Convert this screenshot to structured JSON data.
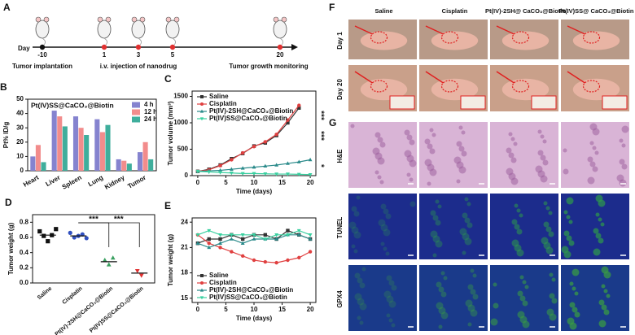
{
  "chart_data": [
    {
      "type": "bar",
      "panel": "B",
      "title": "Pt(IV)SS@CaCO₃@Biotin",
      "y_label": "Pt% ID/g",
      "categories": [
        "Heart",
        "Liver",
        "Spleen",
        "Lung",
        "Kidney",
        "Tumor"
      ],
      "series": [
        {
          "name": "4 h",
          "color": "#8583cf",
          "values": [
            10,
            42,
            38,
            36,
            8,
            13
          ]
        },
        {
          "name": "12 h",
          "color": "#f28c8c",
          "values": [
            18,
            38,
            30,
            27,
            7,
            20
          ]
        },
        {
          "name": "24 h",
          "color": "#3fae9c",
          "values": [
            6,
            31,
            25,
            32,
            5,
            8
          ]
        }
      ],
      "ylim": [
        0,
        50
      ],
      "yticks": [
        0,
        10,
        20,
        30,
        40,
        50
      ],
      "legend": "upper-right"
    },
    {
      "type": "line",
      "panel": "C",
      "x_label": "Time (days)",
      "y_label": "Tumor volume (mm³)",
      "x": [
        0,
        2,
        4,
        6,
        8,
        10,
        12,
        14,
        16,
        18,
        20
      ],
      "series": [
        {
          "name": "Saline",
          "color": "#333333",
          "marker": "square",
          "values": [
            80,
            120,
            200,
            320,
            420,
            560,
            620,
            760,
            1000,
            1280,
            null
          ]
        },
        {
          "name": "Cisplatin",
          "color": "#e04040",
          "marker": "circle",
          "values": [
            80,
            110,
            190,
            300,
            430,
            550,
            640,
            780,
            1050,
            1330,
            null
          ]
        },
        {
          "name": "Pt(IV)-2SH@CaCO₃@Biotin",
          "color": "#2a8a8a",
          "marker": "triangle",
          "values": [
            80,
            90,
            100,
            120,
            140,
            160,
            180,
            200,
            230,
            260,
            300
          ]
        },
        {
          "name": "Pt(IV)SS@CaCO₃@Biotin",
          "color": "#3ad0a0",
          "marker": "triangle-down",
          "values": [
            80,
            70,
            60,
            50,
            40,
            40,
            35,
            30,
            30,
            25,
            20
          ]
        }
      ],
      "xlim": [
        -1,
        21
      ],
      "xticks": [
        0,
        5,
        10,
        15,
        20
      ],
      "ylim": [
        0,
        1600
      ],
      "yticks": [
        0,
        500,
        1000,
        1500
      ],
      "legend": "upper-left",
      "annotations": [
        "***",
        "***",
        "*"
      ]
    },
    {
      "type": "dot",
      "panel": "D",
      "y_label": "Tumor weight (g)",
      "categories": [
        "Saline",
        "Cisplatin",
        "Pt(IV)-2SH@CaCO₃@Biotin",
        "Pt(IV)SS@CaCO₃@Biotin"
      ],
      "colors": [
        "#111111",
        "#3050c0",
        "#3aa060",
        "#e03030"
      ],
      "markers": [
        "square",
        "circle",
        "triangle",
        "triangle-down"
      ],
      "points": [
        [
          0.68,
          0.62,
          0.55,
          0.63,
          0.71
        ],
        [
          0.66,
          0.6,
          0.62,
          0.64,
          0.59
        ],
        [
          0.3,
          0.24,
          0.33
        ],
        [
          0.16,
          0.1
        ]
      ],
      "means": [
        0.63,
        0.62,
        0.28,
        0.13
      ],
      "ylim": [
        0,
        0.9
      ],
      "yticks": [
        {
          "value": 0,
          "label": "0.0"
        },
        0.2,
        0.4,
        0.6,
        0.8
      ],
      "annotations": [
        "***",
        "***"
      ]
    },
    {
      "type": "line",
      "panel": "E",
      "x_label": "Time (days)",
      "y_label": "Tumor weight (g)",
      "x": [
        0,
        2,
        4,
        6,
        8,
        10,
        12,
        14,
        16,
        18,
        20
      ],
      "series": [
        {
          "name": "Saline",
          "color": "#333333",
          "marker": "square",
          "values": [
            21.5,
            22,
            22,
            22.5,
            22,
            22.5,
            22.5,
            22,
            23,
            22.5,
            22
          ]
        },
        {
          "name": "Cisplatin",
          "color": "#e04040",
          "marker": "circle",
          "values": [
            22.5,
            21.5,
            21,
            20.5,
            20,
            19.5,
            19.3,
            19.2,
            19.5,
            19.8,
            20.5
          ]
        },
        {
          "name": "Pt(IV)-2SH@CaCO₃@Biotin",
          "color": "#2a8a8a",
          "marker": "triangle",
          "values": [
            21.5,
            21,
            21.5,
            22,
            21.5,
            22,
            22,
            22,
            22.5,
            22.5,
            22
          ]
        },
        {
          "name": "Pt(IV)SS@CaCO₃@Biotin",
          "color": "#3ad0a0",
          "marker": "triangle-down",
          "values": [
            22.5,
            23,
            22.5,
            22.5,
            22.5,
            22.5,
            22,
            22.5,
            22.5,
            23,
            22.5
          ]
        }
      ],
      "xlim": [
        -1,
        21
      ],
      "xticks": [
        0,
        5,
        10,
        15,
        20
      ],
      "ylim": [
        14.5,
        24.5
      ],
      "yticks": [
        15,
        18,
        21,
        24
      ],
      "legend": "lower-left"
    }
  ],
  "timeline": {
    "panel": "A",
    "day_label": "Day",
    "days": [
      -10,
      1,
      3,
      5,
      20
    ],
    "captions": [
      "Tumor implantation",
      "i.v. injection of nanodrug",
      "Tumor growth monitoring"
    ]
  },
  "images": {
    "panel_f": "F",
    "panel_g": "G",
    "columns": [
      "Saline",
      "Cisplatin",
      "Pt(IV)-2SH@ CaCO₃@Biotin",
      "Pt(IV)SS@ CaCO₃@Biotin"
    ],
    "rows_f": [
      "Day 1",
      "Day 20"
    ],
    "rows_g": [
      "H&E",
      "TUNEL",
      "GPX4"
    ]
  }
}
